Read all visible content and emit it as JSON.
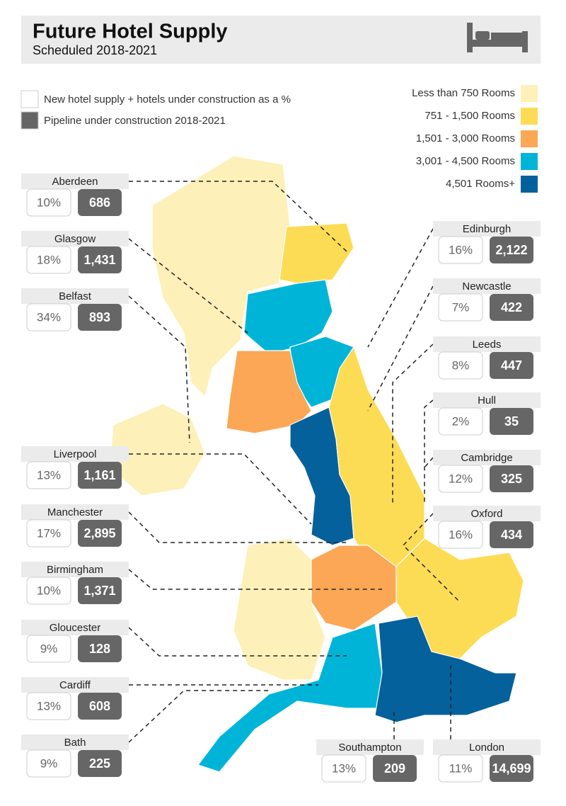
{
  "header": {
    "title": "Future Hotel Supply",
    "subtitle": "Scheduled 2018-2021"
  },
  "key": [
    {
      "label": "New hotel supply + hotels under construction as a %",
      "color": "#ffffff"
    },
    {
      "label": "Pipeline under construction 2018-2021",
      "color": "#666666"
    }
  ],
  "legend": [
    {
      "label": "Less than 750 Rooms",
      "color": "#fdf0b8"
    },
    {
      "label": "751 - 1,500 Rooms",
      "color": "#fddc55"
    },
    {
      "label": "1,501 - 3,000 Rooms",
      "color": "#fba755"
    },
    {
      "label": "3,001 - 4,500 Rooms",
      "color": "#00b4d8"
    },
    {
      "label": "4,501 Rooms+",
      "color": "#04619c"
    }
  ],
  "cities": [
    {
      "name": "Aberdeen",
      "share": "10%",
      "pipeline": "686"
    },
    {
      "name": "Glasgow",
      "share": "18%",
      "pipeline": "1,431"
    },
    {
      "name": "Belfast",
      "share": "34%",
      "pipeline": "893"
    },
    {
      "name": "Liverpool",
      "share": "13%",
      "pipeline": "1,161"
    },
    {
      "name": "Manchester",
      "share": "17%",
      "pipeline": "2,895"
    },
    {
      "name": "Birmingham",
      "share": "10%",
      "pipeline": "1,371"
    },
    {
      "name": "Gloucester",
      "share": "9%",
      "pipeline": "128"
    },
    {
      "name": "Cardiff",
      "share": "13%",
      "pipeline": "608"
    },
    {
      "name": "Bath",
      "share": "9%",
      "pipeline": "225"
    },
    {
      "name": "Edinburgh",
      "share": "16%",
      "pipeline": "2,122"
    },
    {
      "name": "Newcastle",
      "share": "7%",
      "pipeline": "422"
    },
    {
      "name": "Leeds",
      "share": "8%",
      "pipeline": "447"
    },
    {
      "name": "Hull",
      "share": "2%",
      "pipeline": "35"
    },
    {
      "name": "Cambridge",
      "share": "12%",
      "pipeline": "325"
    },
    {
      "name": "Oxford",
      "share": "16%",
      "pipeline": "434"
    },
    {
      "name": "Southampton",
      "share": "13%",
      "pipeline": "209"
    },
    {
      "name": "London",
      "share": "11%",
      "pipeline": "14,699"
    }
  ]
}
